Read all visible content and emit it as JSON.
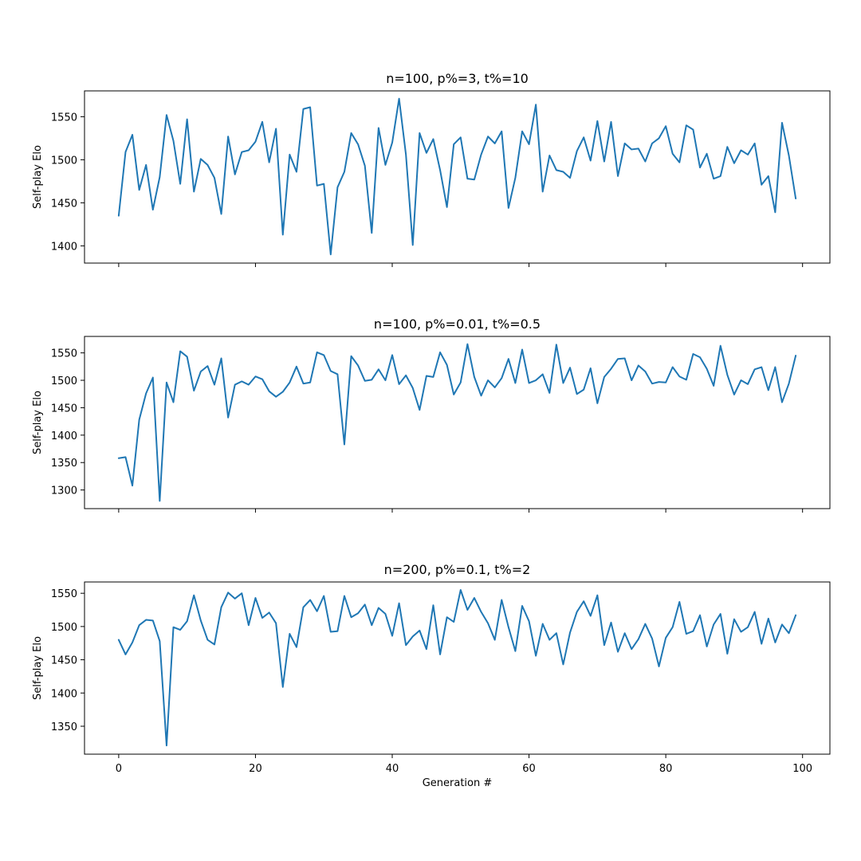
{
  "chart_data": [
    {
      "type": "line",
      "title": "n=100, p%=3, t%=10",
      "xlabel": "",
      "ylabel": "Self-play Elo",
      "xlim": [
        -5,
        104
      ],
      "ylim": [
        1380,
        1580
      ],
      "xticks": [
        0,
        20,
        40,
        60,
        80,
        100
      ],
      "xticklabels_visible": false,
      "yticks": [
        1400,
        1450,
        1500,
        1550
      ],
      "grid": false,
      "color": "#1f77b4",
      "series": [
        {
          "x": [
            0,
            1,
            2,
            3,
            4,
            5,
            6,
            7,
            8,
            9,
            10,
            11,
            12,
            13,
            14,
            15,
            16,
            17,
            18,
            19,
            20,
            21,
            22,
            23,
            24,
            25,
            26,
            27,
            28,
            29,
            30,
            31,
            32,
            33,
            34,
            35,
            36,
            37,
            38,
            39,
            40,
            41,
            42,
            43,
            44,
            45,
            46,
            47,
            48,
            49,
            50,
            51,
            52,
            53,
            54,
            55,
            56,
            57,
            58,
            59,
            60,
            61,
            62,
            63,
            64,
            65,
            66,
            67,
            68,
            69,
            70,
            71,
            72,
            73,
            74,
            75,
            76,
            77,
            78,
            79,
            80,
            81,
            82,
            83,
            84,
            85,
            86,
            87,
            88,
            89,
            90,
            91,
            92,
            93,
            94,
            95,
            96,
            97,
            98,
            99
          ],
          "values": [
            1435,
            1509,
            1529,
            1465,
            1494,
            1442,
            1480,
            1552,
            1522,
            1472,
            1547,
            1463,
            1501,
            1494,
            1479,
            1437,
            1527,
            1483,
            1509,
            1511,
            1521,
            1544,
            1497,
            1536,
            1413,
            1506,
            1486,
            1559,
            1561,
            1470,
            1472,
            1390,
            1468,
            1486,
            1531,
            1518,
            1493,
            1415,
            1537,
            1494,
            1520,
            1571,
            1506,
            1401,
            1531,
            1508,
            1524,
            1488,
            1445,
            1518,
            1526,
            1478,
            1477,
            1506,
            1527,
            1519,
            1533,
            1444,
            1479,
            1533,
            1518,
            1564,
            1463,
            1505,
            1488,
            1486,
            1479,
            1510,
            1526,
            1499,
            1545,
            1498,
            1544,
            1481,
            1519,
            1512,
            1513,
            1498,
            1519,
            1525,
            1539,
            1507,
            1497,
            1540,
            1535,
            1491,
            1507,
            1478,
            1481,
            1515,
            1496,
            1511,
            1506,
            1519,
            1471,
            1481,
            1439,
            1543,
            1505,
            1455
          ]
        }
      ]
    },
    {
      "type": "line",
      "title": "n=100, p%=0.01, t%=0.5",
      "xlabel": "",
      "ylabel": "Self-play Elo",
      "xlim": [
        -5,
        104
      ],
      "ylim": [
        1266,
        1580
      ],
      "xticks": [
        0,
        20,
        40,
        60,
        80,
        100
      ],
      "xticklabels_visible": false,
      "yticks": [
        1300,
        1350,
        1400,
        1450,
        1500,
        1550
      ],
      "grid": false,
      "color": "#1f77b4",
      "series": [
        {
          "x": [
            0,
            1,
            2,
            3,
            4,
            5,
            6,
            7,
            8,
            9,
            10,
            11,
            12,
            13,
            14,
            15,
            16,
            17,
            18,
            19,
            20,
            21,
            22,
            23,
            24,
            25,
            26,
            27,
            28,
            29,
            30,
            31,
            32,
            33,
            34,
            35,
            36,
            37,
            38,
            39,
            40,
            41,
            42,
            43,
            44,
            45,
            46,
            47,
            48,
            49,
            50,
            51,
            52,
            53,
            54,
            55,
            56,
            57,
            58,
            59,
            60,
            61,
            62,
            63,
            64,
            65,
            66,
            67,
            68,
            69,
            70,
            71,
            72,
            73,
            74,
            75,
            76,
            77,
            78,
            79,
            80,
            81,
            82,
            83,
            84,
            85,
            86,
            87,
            88,
            89,
            90,
            91,
            92,
            93,
            94,
            95,
            96,
            97,
            98,
            99
          ],
          "values": [
            1358,
            1360,
            1308,
            1428,
            1476,
            1505,
            1280,
            1496,
            1460,
            1553,
            1543,
            1481,
            1516,
            1526,
            1492,
            1540,
            1432,
            1492,
            1498,
            1492,
            1507,
            1502,
            1480,
            1470,
            1479,
            1496,
            1525,
            1494,
            1496,
            1551,
            1546,
            1517,
            1511,
            1383,
            1544,
            1527,
            1499,
            1501,
            1520,
            1500,
            1546,
            1493,
            1509,
            1486,
            1446,
            1508,
            1506,
            1551,
            1528,
            1474,
            1496,
            1566,
            1506,
            1472,
            1500,
            1487,
            1504,
            1539,
            1495,
            1556,
            1495,
            1500,
            1511,
            1477,
            1565,
            1495,
            1523,
            1475,
            1483,
            1522,
            1458,
            1506,
            1521,
            1539,
            1540,
            1500,
            1527,
            1516,
            1494,
            1497,
            1496,
            1524,
            1507,
            1501,
            1548,
            1542,
            1521,
            1490,
            1563,
            1510,
            1474,
            1500,
            1493,
            1520,
            1524,
            1482,
            1524,
            1460,
            1494,
            1545
          ]
        }
      ]
    },
    {
      "type": "line",
      "title": "n=200, p%=0.1, t%=2",
      "xlabel": "Generation #",
      "ylabel": "Self-play Elo",
      "xlim": [
        -5,
        104
      ],
      "ylim": [
        1308,
        1567
      ],
      "xticks": [
        0,
        20,
        40,
        60,
        80,
        100
      ],
      "xticklabels_visible": true,
      "yticks": [
        1350,
        1400,
        1450,
        1500,
        1550
      ],
      "grid": false,
      "color": "#1f77b4",
      "series": [
        {
          "x": [
            0,
            1,
            2,
            3,
            4,
            5,
            6,
            7,
            8,
            9,
            10,
            11,
            12,
            13,
            14,
            15,
            16,
            17,
            18,
            19,
            20,
            21,
            22,
            23,
            24,
            25,
            26,
            27,
            28,
            29,
            30,
            31,
            32,
            33,
            34,
            35,
            36,
            37,
            38,
            39,
            40,
            41,
            42,
            43,
            44,
            45,
            46,
            47,
            48,
            49,
            50,
            51,
            52,
            53,
            54,
            55,
            56,
            57,
            58,
            59,
            60,
            61,
            62,
            63,
            64,
            65,
            66,
            67,
            68,
            69,
            70,
            71,
            72,
            73,
            74,
            75,
            76,
            77,
            78,
            79,
            80,
            81,
            82,
            83,
            84,
            85,
            86,
            87,
            88,
            89,
            90,
            91,
            92,
            93,
            94,
            95,
            96,
            97,
            98,
            99
          ],
          "values": [
            1480,
            1458,
            1476,
            1502,
            1510,
            1509,
            1478,
            1321,
            1499,
            1495,
            1508,
            1547,
            1509,
            1480,
            1473,
            1529,
            1551,
            1542,
            1550,
            1502,
            1543,
            1513,
            1521,
            1505,
            1409,
            1489,
            1469,
            1529,
            1540,
            1523,
            1546,
            1492,
            1493,
            1546,
            1514,
            1520,
            1533,
            1502,
            1528,
            1519,
            1486,
            1535,
            1472,
            1485,
            1494,
            1466,
            1532,
            1458,
            1514,
            1507,
            1555,
            1525,
            1543,
            1522,
            1505,
            1480,
            1540,
            1499,
            1463,
            1531,
            1508,
            1456,
            1504,
            1480,
            1490,
            1443,
            1491,
            1522,
            1538,
            1516,
            1547,
            1472,
            1506,
            1462,
            1490,
            1466,
            1481,
            1504,
            1482,
            1440,
            1483,
            1499,
            1537,
            1489,
            1493,
            1517,
            1470,
            1503,
            1519,
            1459,
            1511,
            1492,
            1499,
            1522,
            1474,
            1512,
            1476,
            1503,
            1490,
            1517
          ]
        }
      ]
    }
  ]
}
